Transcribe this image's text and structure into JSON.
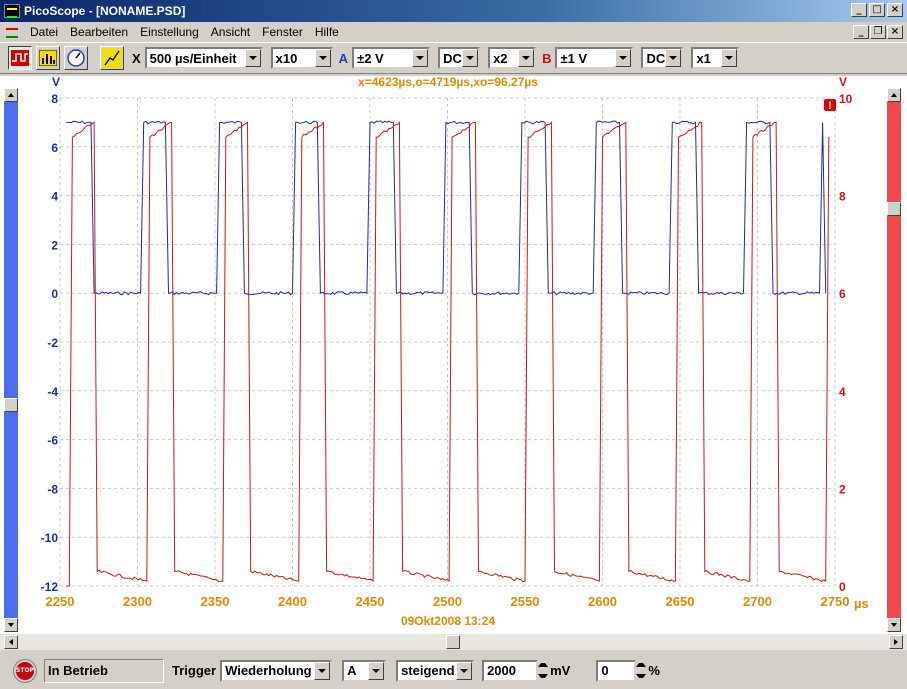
{
  "window": {
    "title": "PicoScope - [NONAME.PSD]",
    "minimize_glyph": "_",
    "maximize_glyph": "□",
    "close_glyph": "×",
    "restore_glyph": "❐"
  },
  "menu": {
    "items": [
      "Datei",
      "Bearbeiten",
      "Einstellung",
      "Ansicht",
      "Fenster",
      "Hilfe"
    ]
  },
  "toolbar": {
    "x_label": "X",
    "timebase": "500 µs/Einheit",
    "x_zoom": "x10",
    "channel_a": {
      "label": "A",
      "range": "±2 V",
      "coupling": "DC",
      "zoom": "x2",
      "color": "#1a3fbf"
    },
    "channel_b": {
      "label": "B",
      "range": "±1 V",
      "coupling": "DC",
      "zoom": "x1",
      "color": "#cc1111"
    }
  },
  "scope": {
    "cursor_readout": "x=4623µs,o=4719µs,xo=96.27µs",
    "left_unit": "V",
    "right_unit": "V",
    "x_unit": "µs",
    "timestamp": "09Okt2008  13:24",
    "warning_glyph": "!",
    "colors": {
      "channel_a": "#1a2fa0",
      "channel_b": "#c81818",
      "axis_text": "#e08a00",
      "grid": "#c8c8c8"
    },
    "left_ticks": [
      "8",
      "6",
      "4",
      "2",
      "0",
      "-2",
      "-4",
      "-6",
      "-8",
      "-10",
      "-12"
    ],
    "right_ticks": [
      "10",
      "8",
      "6",
      "4",
      "2",
      "0"
    ],
    "x_ticks": [
      "2250",
      "2300",
      "2350",
      "2400",
      "2450",
      "2500",
      "2550",
      "2600",
      "2650",
      "2700",
      "2750"
    ]
  },
  "chart_data": {
    "type": "line",
    "x_range": [
      2250,
      2750
    ],
    "ylim_left": [
      -12,
      8
    ],
    "ylim_right": [
      0,
      10
    ],
    "grid": true,
    "series": [
      {
        "axis": "left",
        "x": [
          2254,
          2256,
          2270,
          2272,
          2302,
          2304,
          2318,
          2320,
          2351,
          2353,
          2367,
          2369,
          2400,
          2402,
          2416,
          2418,
          2448,
          2450,
          2465,
          2467,
          2497,
          2499,
          2514,
          2516,
          2546,
          2548,
          2563,
          2565,
          2594,
          2596,
          2611,
          2613,
          2643,
          2645,
          2660,
          2662,
          2691,
          2693,
          2708,
          2710,
          2740,
          2742,
          2744
        ],
        "y": [
          7.0,
          7.0,
          7.0,
          0.0,
          0.0,
          7.0,
          7.0,
          0.0,
          0.0,
          7.0,
          7.0,
          0.0,
          0.0,
          7.0,
          7.0,
          0.0,
          0.0,
          7.0,
          7.0,
          0.0,
          0.0,
          7.0,
          7.0,
          0.0,
          0.0,
          7.0,
          7.0,
          0.0,
          0.0,
          7.0,
          7.0,
          0.0,
          0.0,
          7.0,
          7.0,
          0.0,
          0.0,
          7.0,
          7.0,
          0.0,
          0.0,
          7.0,
          0.0
        ]
      },
      {
        "axis": "right",
        "x": [
          2254,
          2256,
          2258,
          2272,
          2274,
          2306,
          2308,
          2322,
          2324,
          2355,
          2357,
          2371,
          2373,
          2404,
          2406,
          2420,
          2422,
          2452,
          2454,
          2469,
          2471,
          2501,
          2503,
          2518,
          2520,
          2550,
          2552,
          2567,
          2569,
          2598,
          2600,
          2615,
          2617,
          2647,
          2649,
          2664,
          2666,
          2695,
          2697,
          2712,
          2714,
          2744,
          2746
        ],
        "y": [
          0.0,
          0.0,
          9.2,
          9.5,
          0.3,
          0.1,
          9.2,
          9.5,
          0.3,
          0.1,
          9.2,
          9.5,
          0.3,
          0.1,
          9.2,
          9.5,
          0.3,
          0.1,
          9.2,
          9.5,
          0.3,
          0.1,
          9.2,
          9.5,
          0.3,
          0.1,
          9.2,
          9.5,
          0.3,
          0.1,
          9.2,
          9.5,
          0.3,
          0.1,
          9.2,
          9.5,
          0.3,
          0.1,
          9.2,
          9.5,
          0.3,
          0.1,
          9.2
        ]
      }
    ]
  },
  "status": {
    "stop_label": "STOP",
    "state": "In Betrieb",
    "trigger_label": "Trigger",
    "trigger_mode": "Wiederholung",
    "trigger_channel": "A",
    "trigger_edge": "steigend",
    "trigger_level": "2000",
    "trigger_unit": "mV",
    "pre_trigger": "0",
    "pre_trigger_unit": "%"
  }
}
